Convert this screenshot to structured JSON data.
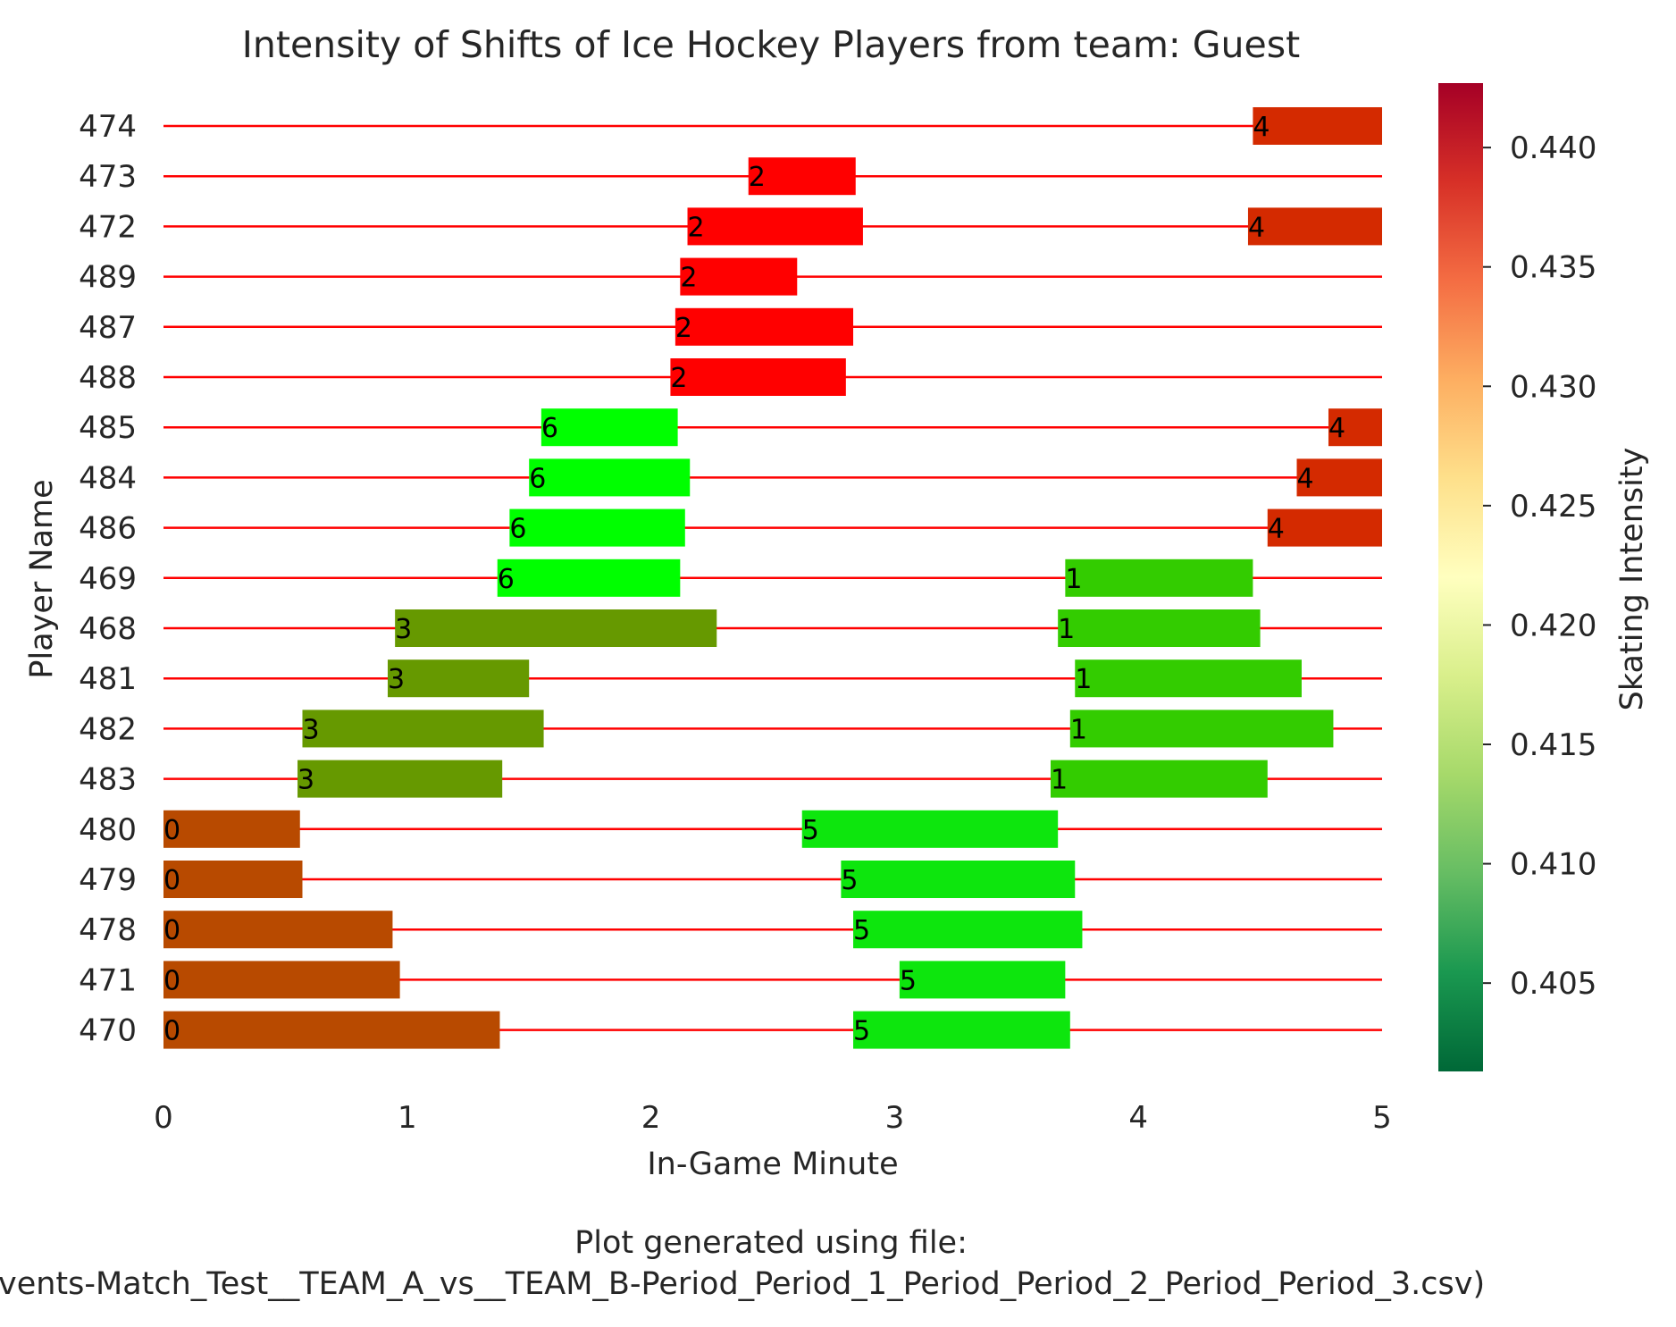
{
  "chart_data": {
    "type": "bar",
    "orientation": "horizontal-gantt",
    "title": "Intensity of Shifts of Ice Hockey Players from team: Guest",
    "xlabel": "In-Game Minute",
    "ylabel": "Player Name",
    "xlim": [
      0,
      5
    ],
    "x_ticks": [
      "0",
      "1",
      "2",
      "3",
      "4",
      "5"
    ],
    "grid": false,
    "baseline_color": "#ff0000",
    "players": [
      "474",
      "473",
      "472",
      "489",
      "487",
      "488",
      "485",
      "484",
      "486",
      "469",
      "468",
      "481",
      "482",
      "483",
      "480",
      "479",
      "478",
      "471",
      "470"
    ],
    "shifts": [
      {
        "player": "474",
        "start": 4.47,
        "end": 5.0,
        "label": "4",
        "color": "#d42a00"
      },
      {
        "player": "473",
        "start": 2.4,
        "end": 2.84,
        "label": "2",
        "color": "#ff0000"
      },
      {
        "player": "472",
        "start": 2.15,
        "end": 2.87,
        "label": "2",
        "color": "#ff0000"
      },
      {
        "player": "472",
        "start": 4.45,
        "end": 5.0,
        "label": "4",
        "color": "#d42a00"
      },
      {
        "player": "489",
        "start": 2.12,
        "end": 2.6,
        "label": "2",
        "color": "#ff0000"
      },
      {
        "player": "487",
        "start": 2.1,
        "end": 2.83,
        "label": "2",
        "color": "#ff0000"
      },
      {
        "player": "488",
        "start": 2.08,
        "end": 2.8,
        "label": "2",
        "color": "#ff0000"
      },
      {
        "player": "485",
        "start": 1.55,
        "end": 2.11,
        "label": "6",
        "color": "#00ff00"
      },
      {
        "player": "485",
        "start": 4.78,
        "end": 5.0,
        "label": "4",
        "color": "#d42a00"
      },
      {
        "player": "484",
        "start": 1.5,
        "end": 2.16,
        "label": "6",
        "color": "#00ff00"
      },
      {
        "player": "484",
        "start": 4.65,
        "end": 5.0,
        "label": "4",
        "color": "#d42a00"
      },
      {
        "player": "486",
        "start": 1.42,
        "end": 2.14,
        "label": "6",
        "color": "#00ff00"
      },
      {
        "player": "486",
        "start": 4.53,
        "end": 5.0,
        "label": "4",
        "color": "#d42a00"
      },
      {
        "player": "469",
        "start": 1.37,
        "end": 2.12,
        "label": "6",
        "color": "#00ff00"
      },
      {
        "player": "469",
        "start": 3.7,
        "end": 4.47,
        "label": "1",
        "color": "#33cc00"
      },
      {
        "player": "468",
        "start": 0.95,
        "end": 2.27,
        "label": "3",
        "color": "#669900"
      },
      {
        "player": "468",
        "start": 3.67,
        "end": 4.5,
        "label": "1",
        "color": "#33cc00"
      },
      {
        "player": "481",
        "start": 0.92,
        "end": 1.5,
        "label": "3",
        "color": "#669900"
      },
      {
        "player": "481",
        "start": 3.74,
        "end": 4.67,
        "label": "1",
        "color": "#33cc00"
      },
      {
        "player": "482",
        "start": 0.57,
        "end": 1.56,
        "label": "3",
        "color": "#669900"
      },
      {
        "player": "482",
        "start": 3.72,
        "end": 4.8,
        "label": "1",
        "color": "#33cc00"
      },
      {
        "player": "483",
        "start": 0.55,
        "end": 1.39,
        "label": "3",
        "color": "#669900"
      },
      {
        "player": "483",
        "start": 3.64,
        "end": 4.53,
        "label": "1",
        "color": "#33cc00"
      },
      {
        "player": "480",
        "start": 0.0,
        "end": 0.56,
        "label": "0",
        "color": "#b84a00"
      },
      {
        "player": "480",
        "start": 2.62,
        "end": 3.67,
        "label": "5",
        "color": "#0de60d"
      },
      {
        "player": "479",
        "start": 0.0,
        "end": 0.57,
        "label": "0",
        "color": "#b84a00"
      },
      {
        "player": "479",
        "start": 2.78,
        "end": 3.74,
        "label": "5",
        "color": "#0de60d"
      },
      {
        "player": "478",
        "start": 0.0,
        "end": 0.94,
        "label": "0",
        "color": "#b84a00"
      },
      {
        "player": "478",
        "start": 2.83,
        "end": 3.77,
        "label": "5",
        "color": "#0de60d"
      },
      {
        "player": "471",
        "start": 0.0,
        "end": 0.97,
        "label": "0",
        "color": "#b84a00"
      },
      {
        "player": "471",
        "start": 3.02,
        "end": 3.7,
        "label": "5",
        "color": "#0de60d"
      },
      {
        "player": "470",
        "start": 0.0,
        "end": 1.38,
        "label": "0",
        "color": "#b84a00"
      },
      {
        "player": "470",
        "start": 2.83,
        "end": 3.72,
        "label": "5",
        "color": "#0de60d"
      }
    ],
    "colorbar": {
      "label": "Skating Intensity",
      "range": [
        0.4013,
        0.4427
      ],
      "ticks": [
        "0.405",
        "0.410",
        "0.415",
        "0.420",
        "0.425",
        "0.430",
        "0.435",
        "0.440"
      ],
      "tick_values": [
        0.405,
        0.41,
        0.415,
        0.42,
        0.425,
        0.43,
        0.435,
        0.44
      ],
      "colormap": "RdYlGn_r",
      "stops": [
        "#006837",
        "#1a9850",
        "#66bd63",
        "#a6d96a",
        "#d9ef8b",
        "#ffffbf",
        "#fee08b",
        "#fdae61",
        "#f46d43",
        "#d73027",
        "#a50026"
      ]
    },
    "footnote": {
      "line1": "Plot generated using file:",
      "line2": "vents-Match_Test__TEAM_A_vs__TEAM_B-Period_Period_1_Period_Period_2_Period_Period_3.csv)"
    }
  }
}
